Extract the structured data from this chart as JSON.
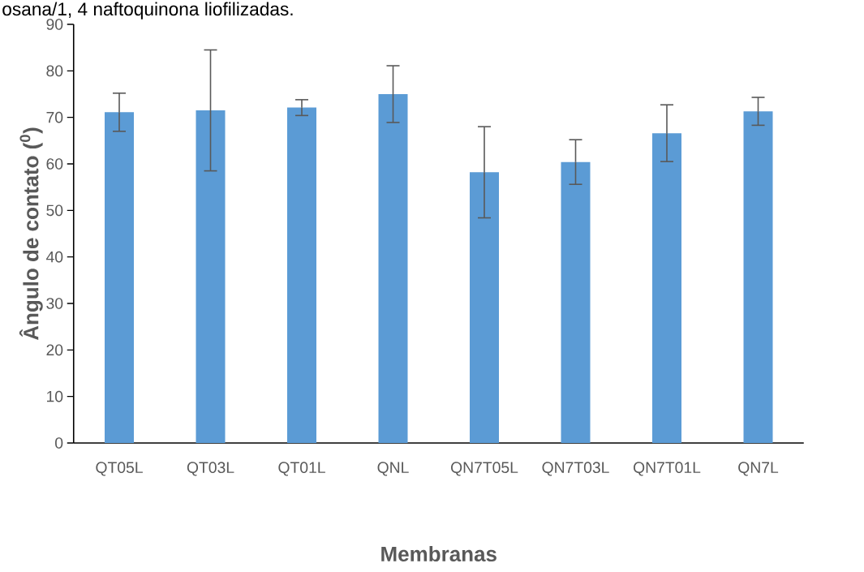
{
  "chart_data": {
    "type": "bar",
    "categories": [
      "QT05L",
      "QT03L",
      "QT01L",
      "QNL",
      "QN7T05L",
      "QN7T03L",
      "QN7T01L",
      "QN7L"
    ],
    "values": [
      71.1,
      71.5,
      72.1,
      75.0,
      58.2,
      60.4,
      66.6,
      71.3
    ],
    "errors": [
      4.1,
      13.0,
      1.7,
      6.1,
      9.8,
      4.8,
      6.1,
      3.0
    ],
    "color": "#5b9bd5",
    "xlabel": "Membranas",
    "ylabel": "Ângulo de contato  ($^{0}$)",
    "ylim": [
      0,
      90
    ],
    "yticks": [
      0,
      10,
      20,
      30,
      40,
      50,
      60,
      70,
      80,
      90
    ],
    "annotations": [
      "osana/1, 4 naftoquinona liofilizadas."
    ],
    "grid": false
  }
}
